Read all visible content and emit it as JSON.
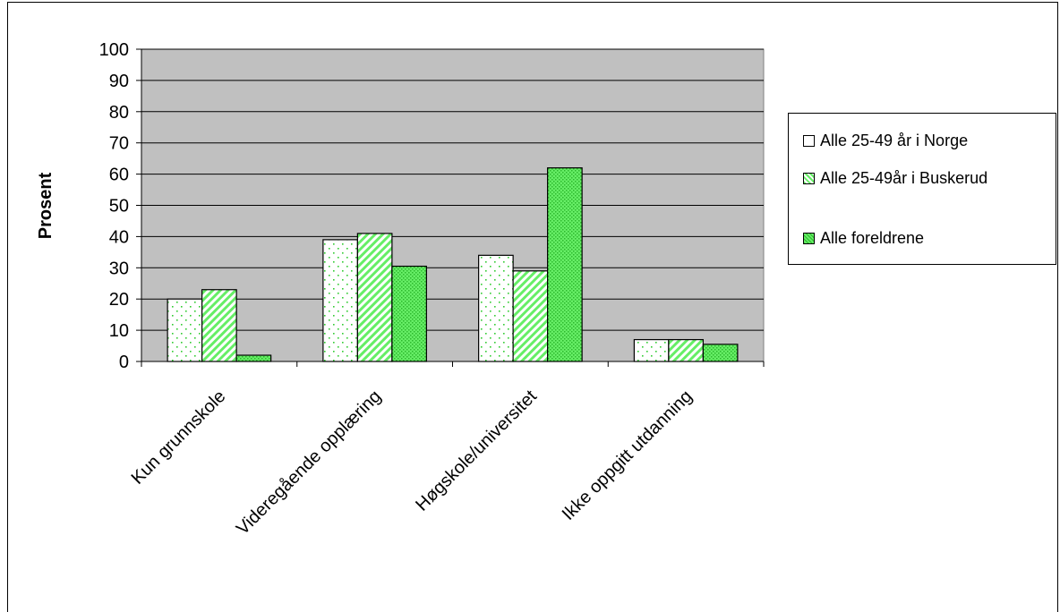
{
  "chart_data": {
    "type": "bar",
    "ylabel": "Prosent",
    "xlabel": "",
    "ylim": [
      0,
      100
    ],
    "yticks": [
      0,
      10,
      20,
      30,
      40,
      50,
      60,
      70,
      80,
      90,
      100
    ],
    "grid": true,
    "legend_position": "right",
    "categories": [
      "Kun grunnskole",
      "Videregående opplæring",
      "Høgskole/universitet",
      "Ikke oppgitt utdanning"
    ],
    "series": [
      {
        "name": "Alle 25-49 år i Norge",
        "values": [
          20,
          39,
          34,
          7
        ],
        "fill": "#ffffff",
        "pattern": "dots"
      },
      {
        "name": "Alle 25-49år i Buskerud",
        "values": [
          23,
          41,
          29,
          7
        ],
        "fill": "#ccffcc",
        "pattern": "diagonal"
      },
      {
        "name": "Alle foreldrene",
        "values": [
          2,
          30.5,
          62,
          5.5
        ],
        "fill": "#66ee66",
        "pattern": "fine"
      }
    ],
    "colors": {
      "plot_background": "#c0c0c0",
      "gridline": "#000000",
      "pattern_green": "#33cc33"
    }
  }
}
